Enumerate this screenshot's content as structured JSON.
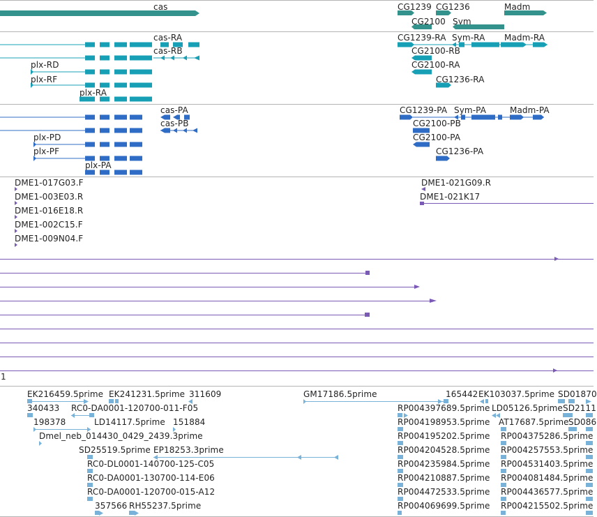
{
  "colors": {
    "gene": "#34928c",
    "transcript": "#17a0b5",
    "cds": "#2f6cc6",
    "clone": "#7a5ab5",
    "est": "#79b2d8",
    "divider": "#b4b4b4"
  },
  "gene_track": {
    "features": [
      "cas",
      "CG1239",
      "CG1236",
      "Madm",
      "CG2100",
      "Sym"
    ]
  },
  "transcript_track": {
    "features": [
      "cas-RA",
      "cas-RB",
      "plx-RD",
      "plx-RF",
      "plx-RA",
      "CG1239-RA",
      "Sym-RA",
      "Madm-RA",
      "CG2100-RB",
      "CG2100-RA",
      "CG1236-RA"
    ]
  },
  "cds_track": {
    "features": [
      "cas-PA",
      "cas-PB",
      "plx-PD",
      "plx-PF",
      "plx-PA",
      "CG1239-PA",
      "Sym-PA",
      "Madm-PA",
      "CG2100-PB",
      "CG2100-PA",
      "CG1236-PA"
    ]
  },
  "clone_track": {
    "features": [
      "DME1-017G03.F",
      "DME1-003E03.R",
      "DME1-016E18.R",
      "DME1-002C15.F",
      "DME1-009N04.F",
      "DME1-021G09.R",
      "DME1-021K17"
    ],
    "row_label": "1"
  },
  "est_track": {
    "features": [
      "EK216459.5prime",
      "EK241231.5prime",
      "311609",
      "GM17186.5prime",
      "165442",
      "EK103037.5prime",
      "SD01870",
      "340433",
      "RC0-DA0001-120700-011-F05",
      "RP004397689.5prime",
      "LD05126.5prime",
      "SD2111",
      "198378",
      "LD14117.5prime",
      "151884",
      "RP004198953.5prime",
      "AT17687.5prime",
      "SD086",
      "Dmel_neb_014430_0429_2439.3prime",
      "RP004195202.5prime",
      "RP004375286.5prime",
      "SD25519.5prime",
      "EP18253.3prime",
      "RP004204528.5prime",
      "RP004257553.5prime",
      "RC0-DL0001-140700-125-C05",
      "RP004235984.5prime",
      "RP004531403.5prime",
      "RC0-DA0001-130700-114-E06",
      "RP004210887.5prime",
      "RP004081484.5prime",
      "RC0-DA0001-120700-015-A12",
      "RP004472533.5prime",
      "RP004436577.5prime",
      "357566",
      "RH55237.5prime",
      "RP004069699.5prime",
      "RP004215502.5prime"
    ]
  }
}
